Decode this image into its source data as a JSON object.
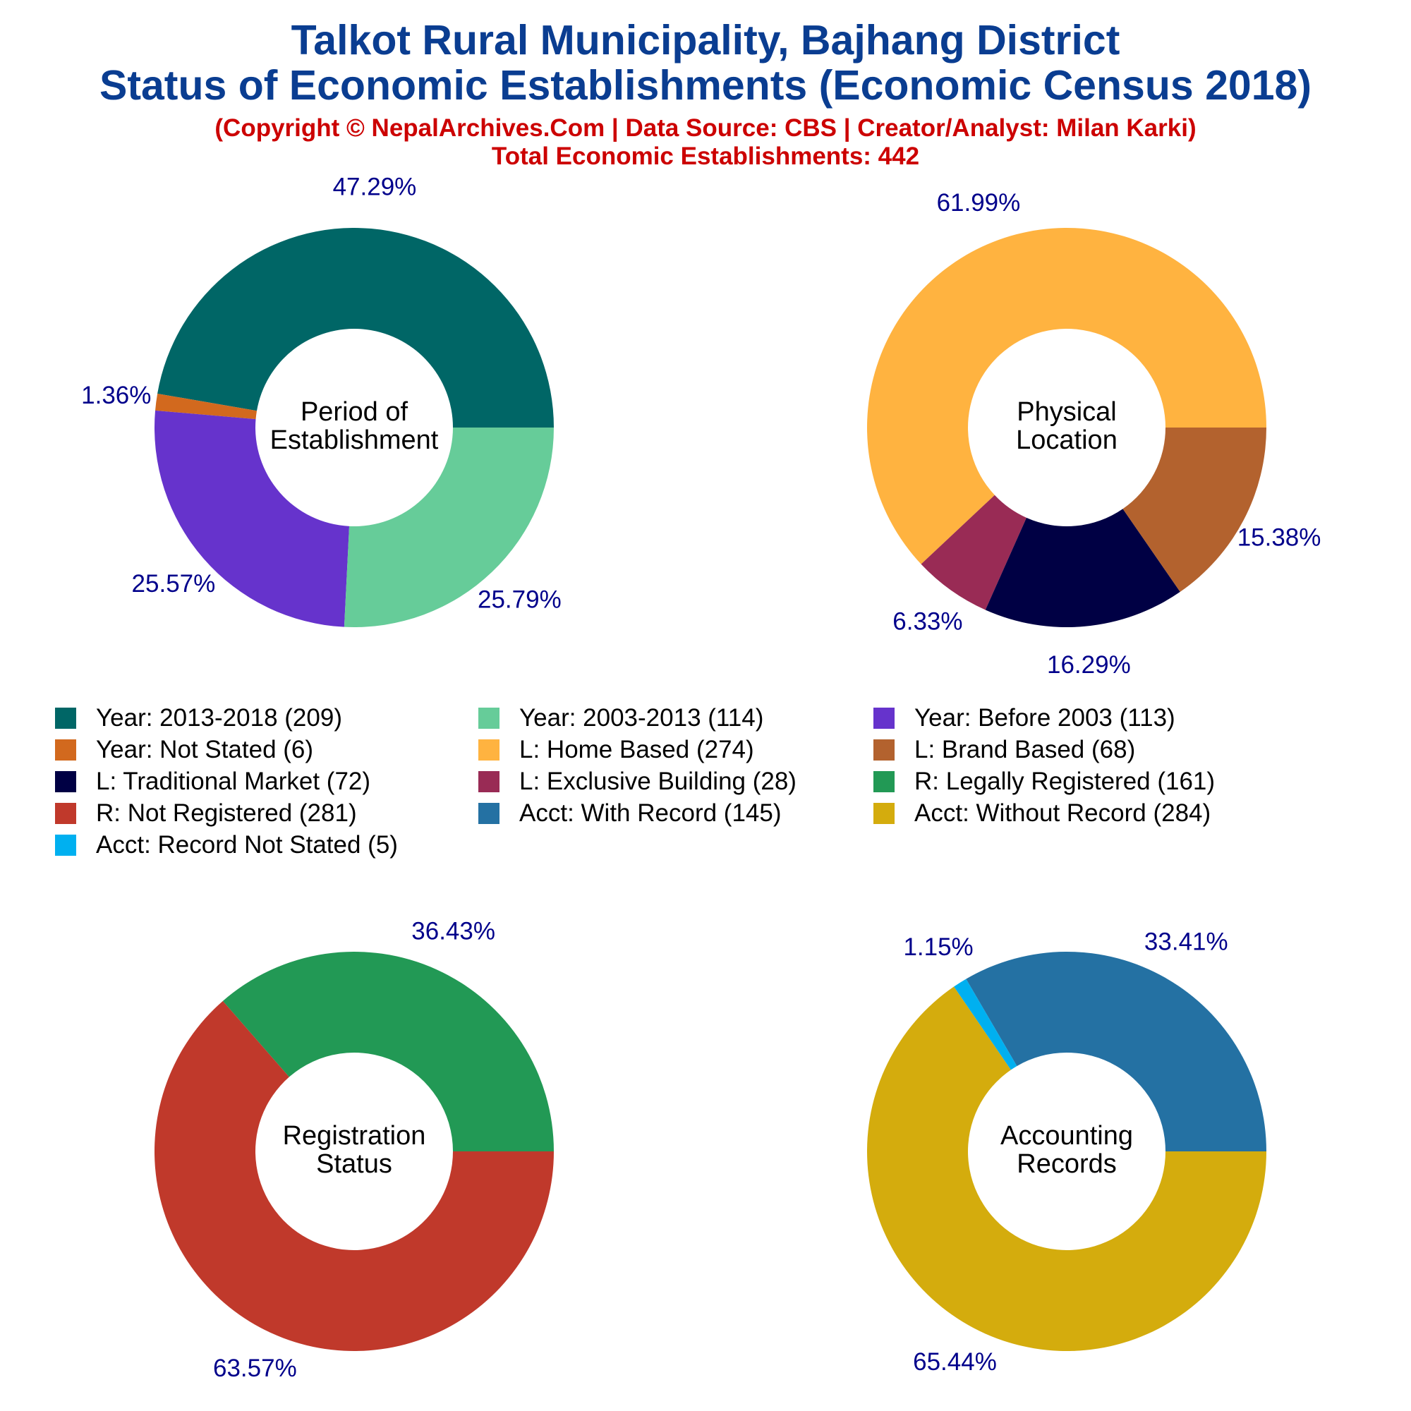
{
  "header": {
    "title_line1": "Talkot Rural Municipality, Bajhang District",
    "title_line2": "Status of Economic Establishments (Economic Census 2018)",
    "subtitle": "(Copyright © NepalArchives.Com | Data Source: CBS | Creator/Analyst: Milan Karki)",
    "total_label": "Total Economic Establishments: 442"
  },
  "colors": {
    "title": "#0a3d91",
    "subtitle": "#cc0000",
    "percent_label": "#00008b"
  },
  "chart_data": [
    {
      "type": "pie",
      "center_label": [
        "Period of",
        "Establishment"
      ],
      "slices": [
        {
          "name": "Year: 2013-2018",
          "value": 209,
          "percent_label": "47.29%",
          "color": "#006666"
        },
        {
          "name": "Year: Not Stated",
          "value": 6,
          "percent_label": "1.36%",
          "color": "#d2691e"
        },
        {
          "name": "Year: Before 2003",
          "value": 113,
          "percent_label": "25.57%",
          "color": "#6633cc"
        },
        {
          "name": "Year: 2003-2013",
          "value": 114,
          "percent_label": "25.79%",
          "color": "#66cc99"
        }
      ]
    },
    {
      "type": "pie",
      "center_label": [
        "Physical",
        "Location"
      ],
      "slices": [
        {
          "name": "L: Home Based",
          "value": 274,
          "percent_label": "61.99%",
          "color": "#ffb340"
        },
        {
          "name": "L: Exclusive Building",
          "value": 28,
          "percent_label": "6.33%",
          "color": "#992b55"
        },
        {
          "name": "L: Traditional Market",
          "value": 72,
          "percent_label": "16.29%",
          "color": "#000044"
        },
        {
          "name": "L: Brand Based",
          "value": 68,
          "percent_label": "15.38%",
          "color": "#b3622e"
        }
      ]
    },
    {
      "type": "pie",
      "center_label": [
        "Registration",
        "Status"
      ],
      "slices": [
        {
          "name": "R: Legally Registered",
          "value": 161,
          "percent_label": "36.43%",
          "color": "#229955"
        },
        {
          "name": "R: Not Registered",
          "value": 281,
          "percent_label": "63.57%",
          "color": "#c0392b"
        }
      ]
    },
    {
      "type": "pie",
      "center_label": [
        "Accounting",
        "Records"
      ],
      "slices": [
        {
          "name": "Acct: With Record",
          "value": 145,
          "percent_label": "33.41%",
          "color": "#2471a3"
        },
        {
          "name": "Acct: Record Not Stated",
          "value": 5,
          "percent_label": "1.15%",
          "color": "#00b0f0"
        },
        {
          "name": "Acct: Without Record",
          "value": 284,
          "percent_label": "65.44%",
          "color": "#d4ac0d"
        }
      ]
    }
  ],
  "legend": [
    {
      "label": "Year: 2013-2018 (209)",
      "color": "#006666"
    },
    {
      "label": "Year: 2003-2013 (114)",
      "color": "#66cc99"
    },
    {
      "label": "Year: Before 2003 (113)",
      "color": "#6633cc"
    },
    {
      "label": "Year: Not Stated (6)",
      "color": "#d2691e"
    },
    {
      "label": "L: Home Based (274)",
      "color": "#ffb340"
    },
    {
      "label": "L: Brand Based (68)",
      "color": "#b3622e"
    },
    {
      "label": "L: Traditional Market (72)",
      "color": "#000044"
    },
    {
      "label": "L: Exclusive Building (28)",
      "color": "#992b55"
    },
    {
      "label": "R: Legally Registered (161)",
      "color": "#229955"
    },
    {
      "label": "R: Not Registered (281)",
      "color": "#c0392b"
    },
    {
      "label": "Acct: With Record (145)",
      "color": "#2471a3"
    },
    {
      "label": "Acct: Without Record (284)",
      "color": "#d4ac0d"
    },
    {
      "label": "Acct: Record Not Stated (5)",
      "color": "#00b0f0"
    }
  ]
}
